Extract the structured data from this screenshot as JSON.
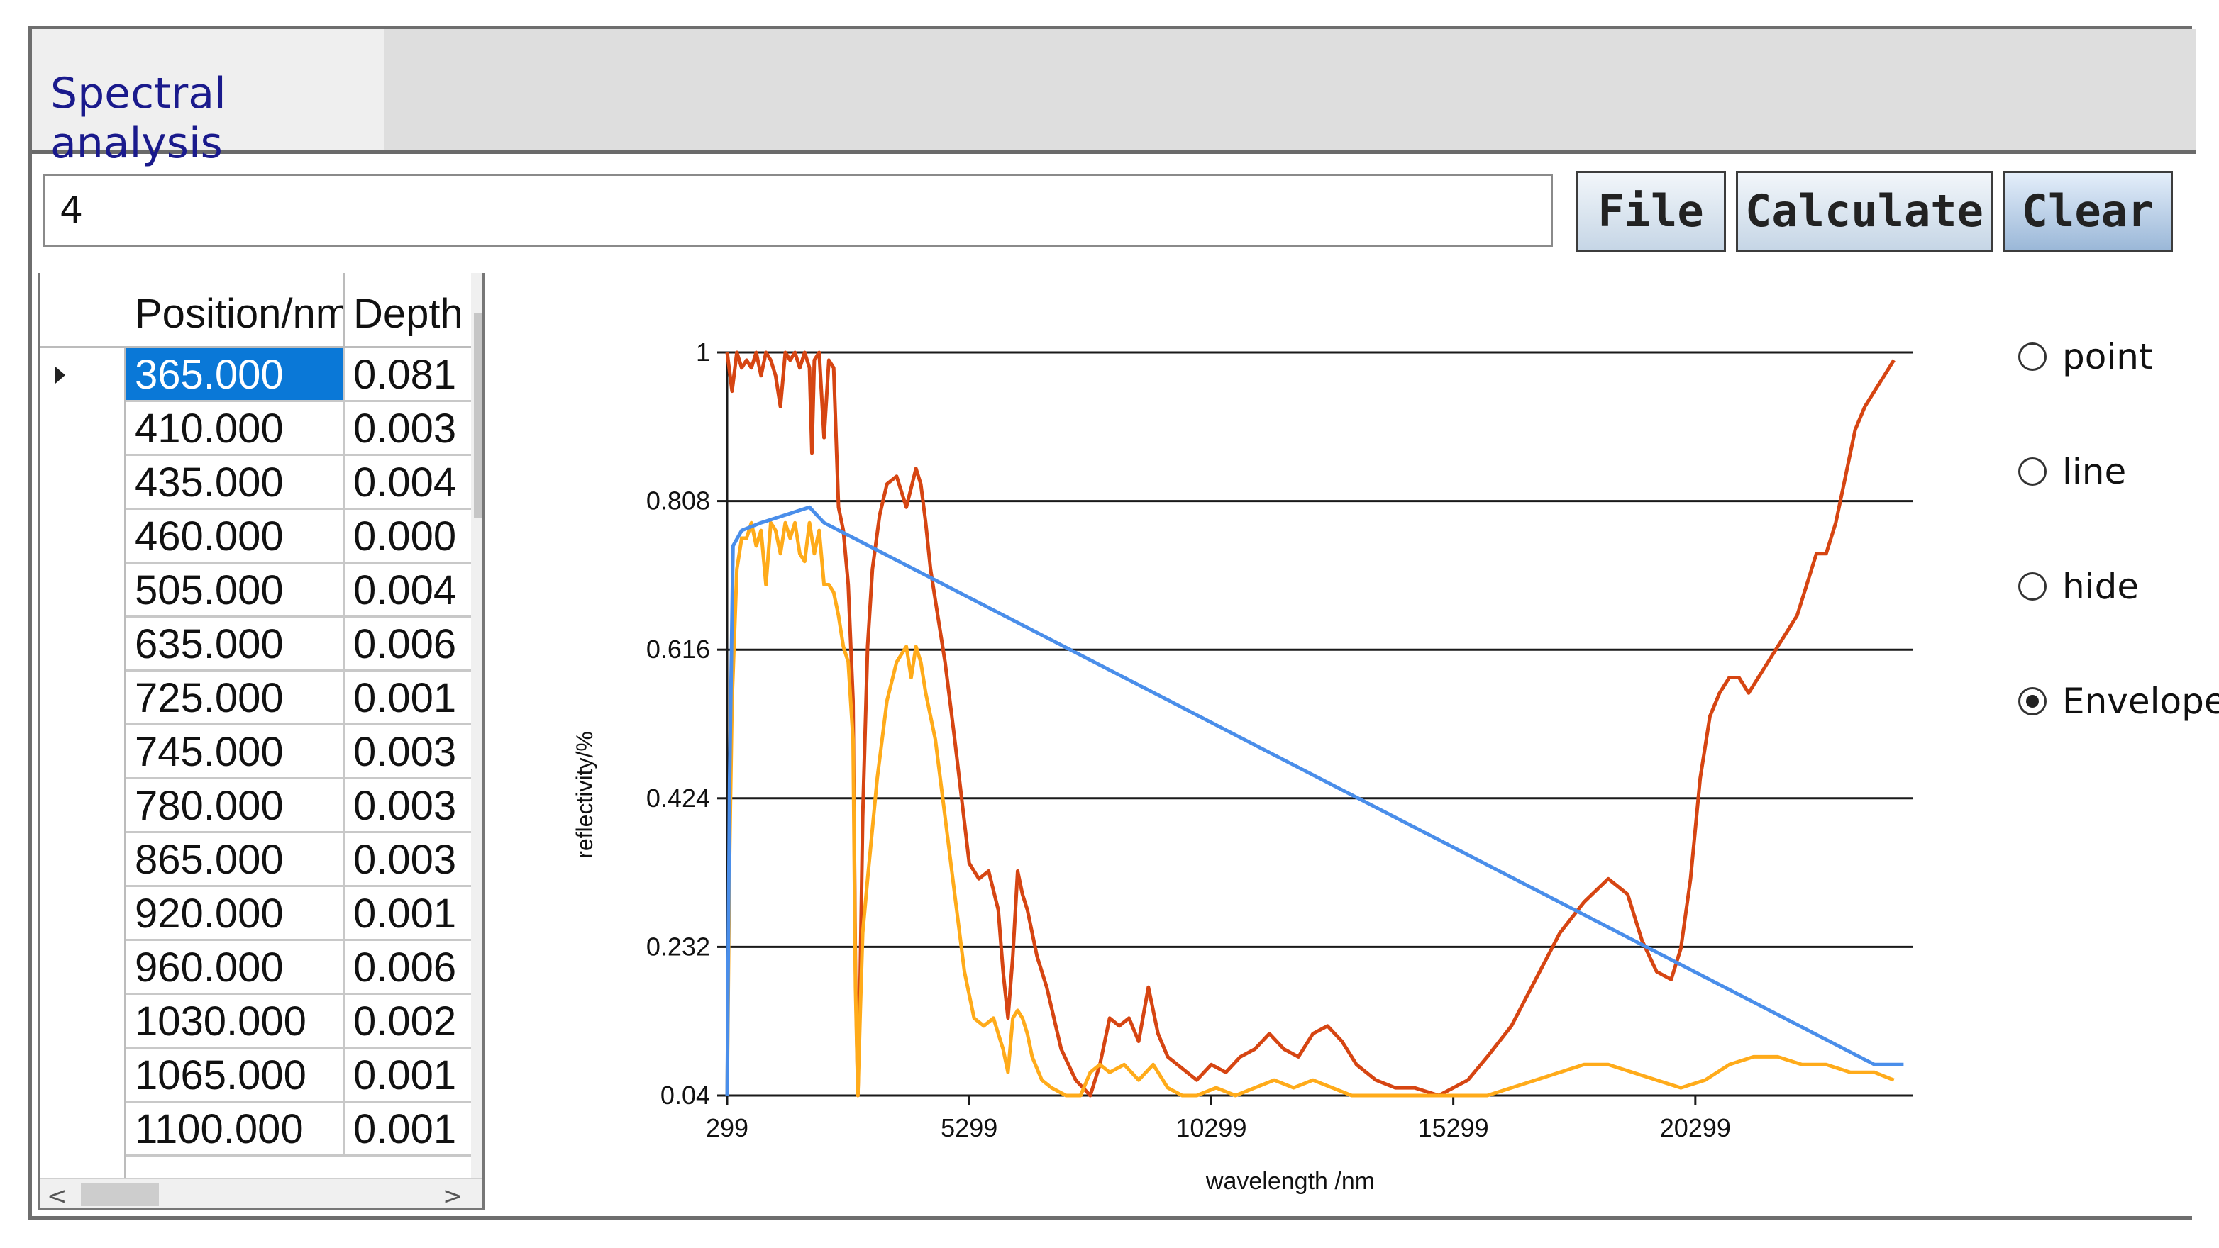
{
  "tab": {
    "title": "Spectral analysis"
  },
  "input": {
    "value": "4"
  },
  "buttons": {
    "file": "File",
    "calculate": "Calculate",
    "clear": "Clear"
  },
  "grid": {
    "headers": {
      "position": "Position/nm",
      "depth": "Depth"
    },
    "rows": [
      {
        "position": "365.000",
        "depth": "0.081",
        "selected": true
      },
      {
        "position": "410.000",
        "depth": "0.003"
      },
      {
        "position": "435.000",
        "depth": "0.004"
      },
      {
        "position": "460.000",
        "depth": "0.000"
      },
      {
        "position": "505.000",
        "depth": "0.004"
      },
      {
        "position": "635.000",
        "depth": "0.006"
      },
      {
        "position": "725.000",
        "depth": "0.001"
      },
      {
        "position": "745.000",
        "depth": "0.003"
      },
      {
        "position": "780.000",
        "depth": "0.003"
      },
      {
        "position": "865.000",
        "depth": "0.003"
      },
      {
        "position": "920.000",
        "depth": "0.001"
      },
      {
        "position": "960.000",
        "depth": "0.006"
      },
      {
        "position": "1030.000",
        "depth": "0.002"
      },
      {
        "position": "1065.000",
        "depth": "0.001"
      },
      {
        "position": "1100.000",
        "depth": "0.001"
      }
    ]
  },
  "radios": {
    "point": "point",
    "line": "line",
    "hide": "hide",
    "envelope": "Envelope",
    "selected": "envelope"
  },
  "chart_data": {
    "type": "line",
    "xlabel": "wavelength /nm",
    "ylabel": "reflectivity/%",
    "xlim": [
      299,
      24800
    ],
    "ylim": [
      0.04,
      1
    ],
    "x_ticks": [
      "299",
      "5299",
      "10299",
      "15299",
      "20299"
    ],
    "y_ticks": [
      "1",
      "0.808",
      "0.616",
      "0.424",
      "0.232",
      "0.04"
    ],
    "grid": "horizontal",
    "colors": {
      "red": "#d64512",
      "orange": "#ffab1a",
      "blue": "#4a8eea"
    },
    "series": [
      {
        "color": "#d64512",
        "x": [
          299,
          400,
          500,
          600,
          700,
          800,
          900,
          1000,
          1100,
          1200,
          1300,
          1400,
          1500,
          1600,
          1700,
          1800,
          1900,
          2000,
          2050,
          2100,
          2200,
          2300,
          2400,
          2500,
          2600,
          2700,
          2800,
          2900,
          2950,
          3000,
          3050,
          3100,
          3200,
          3300,
          3450,
          3600,
          3800,
          4000,
          4200,
          4300,
          4400,
          4500,
          4650,
          4800,
          5000,
          5300,
          5500,
          5700,
          5900,
          6000,
          6100,
          6200,
          6300,
          6400,
          6500,
          6700,
          6900,
          7200,
          7500,
          7800,
          8000,
          8200,
          8400,
          8600,
          8800,
          9000,
          9200,
          9400,
          9600,
          9800,
          10000,
          10300,
          10600,
          10900,
          11200,
          11500,
          11800,
          12100,
          12400,
          12700,
          13000,
          13300,
          13700,
          14100,
          14500,
          15000,
          15300,
          15600,
          16000,
          16500,
          17000,
          17500,
          18000,
          18500,
          18900,
          19200,
          19500,
          19800,
          20000,
          20200,
          20400,
          20600,
          20800,
          21000,
          21200,
          21400,
          21600,
          21800,
          22000,
          22200,
          22400,
          22600,
          22800,
          23000,
          23200,
          23400,
          23600,
          23800,
          24000,
          24200,
          24400
        ],
        "y": [
          1.0,
          0.95,
          1.0,
          0.98,
          0.99,
          0.98,
          1.0,
          0.97,
          1.0,
          0.99,
          0.97,
          0.93,
          1.0,
          0.99,
          1.0,
          0.98,
          1.0,
          0.98,
          0.87,
          0.99,
          1.0,
          0.89,
          0.99,
          0.98,
          0.8,
          0.77,
          0.7,
          0.55,
          0.2,
          0.04,
          0.2,
          0.4,
          0.62,
          0.72,
          0.79,
          0.83,
          0.84,
          0.8,
          0.85,
          0.83,
          0.78,
          0.72,
          0.66,
          0.6,
          0.5,
          0.34,
          0.32,
          0.33,
          0.28,
          0.2,
          0.14,
          0.22,
          0.33,
          0.3,
          0.28,
          0.22,
          0.18,
          0.1,
          0.06,
          0.04,
          0.08,
          0.14,
          0.13,
          0.14,
          0.11,
          0.18,
          0.12,
          0.09,
          0.08,
          0.07,
          0.06,
          0.08,
          0.07,
          0.09,
          0.1,
          0.12,
          0.1,
          0.09,
          0.12,
          0.13,
          0.11,
          0.08,
          0.06,
          0.05,
          0.05,
          0.04,
          0.05,
          0.06,
          0.09,
          0.13,
          0.19,
          0.25,
          0.29,
          0.32,
          0.3,
          0.24,
          0.2,
          0.19,
          0.23,
          0.32,
          0.45,
          0.53,
          0.56,
          0.58,
          0.58,
          0.56,
          0.58,
          0.6,
          0.62,
          0.64,
          0.66,
          0.7,
          0.74,
          0.74,
          0.78,
          0.84,
          0.9,
          0.93,
          0.95,
          0.97,
          0.99
        ]
      },
      {
        "color": "#ffab1a",
        "x": [
          299,
          350,
          400,
          500,
          600,
          700,
          800,
          900,
          1000,
          1100,
          1200,
          1300,
          1400,
          1500,
          1600,
          1700,
          1800,
          1900,
          2000,
          2100,
          2200,
          2300,
          2400,
          2500,
          2600,
          2700,
          2800,
          2900,
          2950,
          3000,
          3050,
          3100,
          3200,
          3400,
          3600,
          3800,
          4000,
          4100,
          4200,
          4300,
          4400,
          4600,
          4800,
          5000,
          5200,
          5400,
          5600,
          5800,
          5900,
          6000,
          6100,
          6200,
          6300,
          6400,
          6500,
          6600,
          6800,
          7000,
          7300,
          7600,
          7800,
          8000,
          8200,
          8500,
          8800,
          9100,
          9400,
          9700,
          10000,
          10400,
          10800,
          11200,
          11600,
          12000,
          12400,
          12800,
          13200,
          13600,
          14000,
          14500,
          15000,
          15500,
          16000,
          16500,
          17000,
          17500,
          18000,
          18500,
          19000,
          19500,
          20000,
          20500,
          21000,
          21500,
          22000,
          22500,
          23000,
          23500,
          24000,
          24400
        ],
        "y": [
          0.04,
          0.35,
          0.55,
          0.72,
          0.76,
          0.76,
          0.78,
          0.75,
          0.77,
          0.7,
          0.78,
          0.77,
          0.74,
          0.78,
          0.76,
          0.78,
          0.74,
          0.73,
          0.78,
          0.74,
          0.77,
          0.7,
          0.7,
          0.69,
          0.66,
          0.62,
          0.6,
          0.5,
          0.18,
          0.04,
          0.15,
          0.25,
          0.32,
          0.45,
          0.55,
          0.6,
          0.62,
          0.58,
          0.62,
          0.6,
          0.56,
          0.5,
          0.4,
          0.3,
          0.2,
          0.14,
          0.13,
          0.14,
          0.12,
          0.1,
          0.07,
          0.14,
          0.15,
          0.14,
          0.12,
          0.09,
          0.06,
          0.05,
          0.04,
          0.04,
          0.07,
          0.08,
          0.07,
          0.08,
          0.06,
          0.08,
          0.05,
          0.04,
          0.04,
          0.05,
          0.04,
          0.05,
          0.06,
          0.05,
          0.06,
          0.05,
          0.04,
          0.04,
          0.04,
          0.04,
          0.04,
          0.04,
          0.04,
          0.05,
          0.06,
          0.07,
          0.08,
          0.08,
          0.07,
          0.06,
          0.05,
          0.06,
          0.08,
          0.09,
          0.09,
          0.08,
          0.08,
          0.07,
          0.07,
          0.06
        ]
      },
      {
        "color": "#4a8eea",
        "x": [
          299,
          350,
          420,
          600,
          1000,
          1500,
          2000,
          2300,
          24000,
          24600
        ],
        "y": [
          0.04,
          0.45,
          0.75,
          0.77,
          0.78,
          0.79,
          0.8,
          0.78,
          0.08,
          0.08
        ]
      }
    ]
  }
}
